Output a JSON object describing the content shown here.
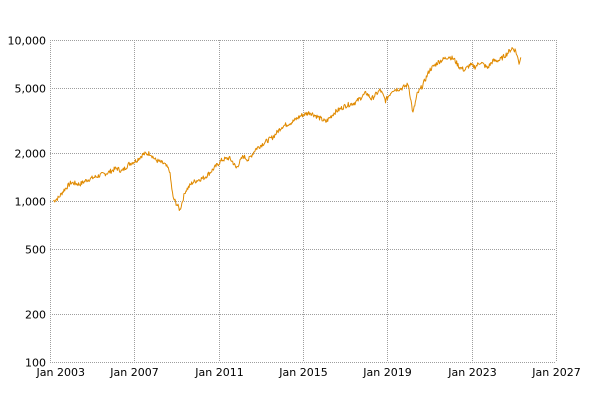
{
  "chart_data": {
    "type": "line",
    "title": "",
    "xlabel": "",
    "ylabel": "",
    "y_scale": "log",
    "ylim": [
      100,
      10000
    ],
    "xlim": [
      "2003-01-01",
      "2027-01-01"
    ],
    "grid": true,
    "line_color": "#E08A00",
    "grid_color": "#9E9E9E",
    "x_ticks": [
      {
        "value": "2003-01-01",
        "label": "Jan 2003"
      },
      {
        "value": "2007-01-01",
        "label": "Jan 2007"
      },
      {
        "value": "2011-01-01",
        "label": "Jan 2011"
      },
      {
        "value": "2015-01-01",
        "label": "Jan 2015"
      },
      {
        "value": "2019-01-01",
        "label": "Jan 2019"
      },
      {
        "value": "2023-01-01",
        "label": "Jan 2023"
      },
      {
        "value": "2027-01-01",
        "label": "Jan 2027"
      }
    ],
    "y_ticks": [
      {
        "value": 100,
        "label": "100"
      },
      {
        "value": 200,
        "label": "200"
      },
      {
        "value": 500,
        "label": "500"
      },
      {
        "value": 1000,
        "label": "1,000"
      },
      {
        "value": 2000,
        "label": "2,000"
      },
      {
        "value": 5000,
        "label": "5,000"
      },
      {
        "value": 10000,
        "label": "10,000"
      }
    ],
    "series": [
      {
        "x": [
          "2003-03-01",
          "2003-06-01",
          "2003-09-01",
          "2004-01-01",
          "2004-06-01",
          "2004-10-01",
          "2005-02-01",
          "2005-06-01",
          "2005-10-01",
          "2006-03-01",
          "2006-06-01",
          "2006-10-01",
          "2007-02-01",
          "2007-06-01",
          "2007-10-01",
          "2008-01-01",
          "2008-06-01",
          "2008-09-01",
          "2008-11-01",
          "2009-03-01",
          "2009-06-01",
          "2009-10-01",
          "2010-01-01",
          "2010-05-01",
          "2010-08-01",
          "2011-03-01",
          "2011-07-01",
          "2011-09-01",
          "2011-11-01",
          "2012-03-01",
          "2012-06-01",
          "2012-10-01",
          "2013-03-01",
          "2013-08-01",
          "2014-01-01",
          "2014-07-01",
          "2014-12-01",
          "2015-05-01",
          "2015-09-01",
          "2016-02-01",
          "2016-07-01",
          "2017-01-01",
          "2017-07-01",
          "2018-01-01",
          "2018-04-01",
          "2018-09-01",
          "2018-12-01",
          "2019-04-01",
          "2019-09-01",
          "2020-01-01",
          "2020-03-20",
          "2020-06-01",
          "2020-09-01",
          "2021-01-01",
          "2021-06-01",
          "2021-12-01",
          "2022-03-01",
          "2022-06-01",
          "2022-09-01",
          "2022-12-01",
          "2023-03-01",
          "2023-06-01",
          "2023-10-01",
          "2024-01-01",
          "2024-05-01",
          "2024-09-01",
          "2024-12-01",
          "2025-02-01",
          "2025-04-01",
          "2025-05-01"
        ],
        "y": [
          1000,
          1050,
          1170,
          1300,
          1270,
          1350,
          1400,
          1450,
          1500,
          1600,
          1530,
          1700,
          1780,
          1950,
          1980,
          1800,
          1700,
          1550,
          1050,
          880,
          1150,
          1300,
          1350,
          1400,
          1500,
          1800,
          1850,
          1750,
          1600,
          1900,
          1800,
          2100,
          2300,
          2500,
          2900,
          3100,
          3400,
          3550,
          3350,
          3100,
          3550,
          3900,
          4100,
          4700,
          4300,
          4900,
          4200,
          4900,
          5000,
          5300,
          3500,
          4600,
          5200,
          6500,
          7300,
          7900,
          7600,
          6800,
          6500,
          7000,
          6800,
          7300,
          6700,
          7400,
          7500,
          8200,
          8900,
          8600,
          7200,
          7800
        ]
      }
    ]
  }
}
